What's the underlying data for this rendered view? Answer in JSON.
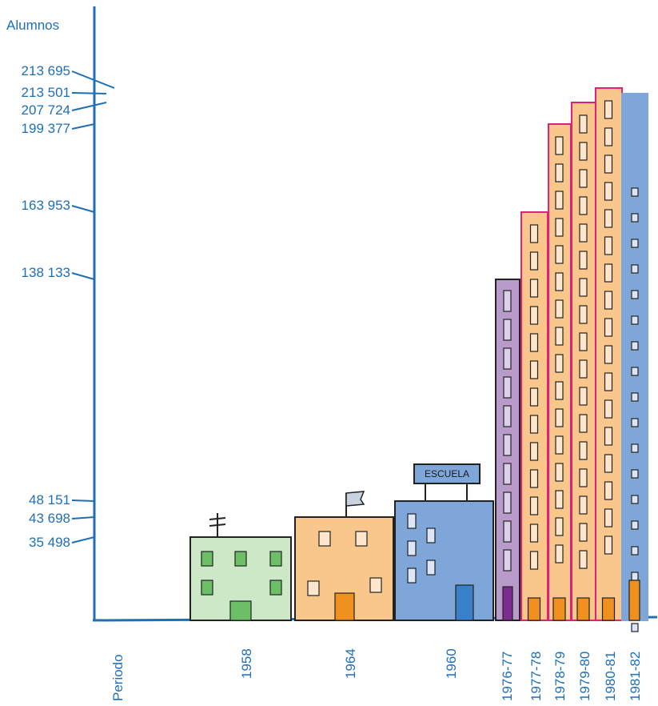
{
  "chart_data": {
    "type": "bar",
    "ylabel": "Alumnos",
    "xlabel": "Periodo",
    "categories": [
      "1958",
      "1964",
      "1960",
      "1976-77",
      "1977-78",
      "1978-79",
      "1979-80",
      "1980-81",
      "1981-82"
    ],
    "values": [
      35498,
      43698,
      48151,
      138133,
      163953,
      199377,
      207724,
      213695,
      213501
    ],
    "y_ticks": [
      "213 695",
      "213 501",
      "207 724",
      "199 377",
      "163 953",
      "138 133",
      "48 151",
      "43 698",
      "35 498"
    ],
    "building_sign": "ESCUELA",
    "colors": {
      "axis": "#1f6fb5",
      "text": "#1f6fb5",
      "green": "#cde8c6",
      "orange": "#f9c68c",
      "blue": "#7ea6d9",
      "purple": "#b89acb",
      "magenta": "#e0207a"
    }
  }
}
